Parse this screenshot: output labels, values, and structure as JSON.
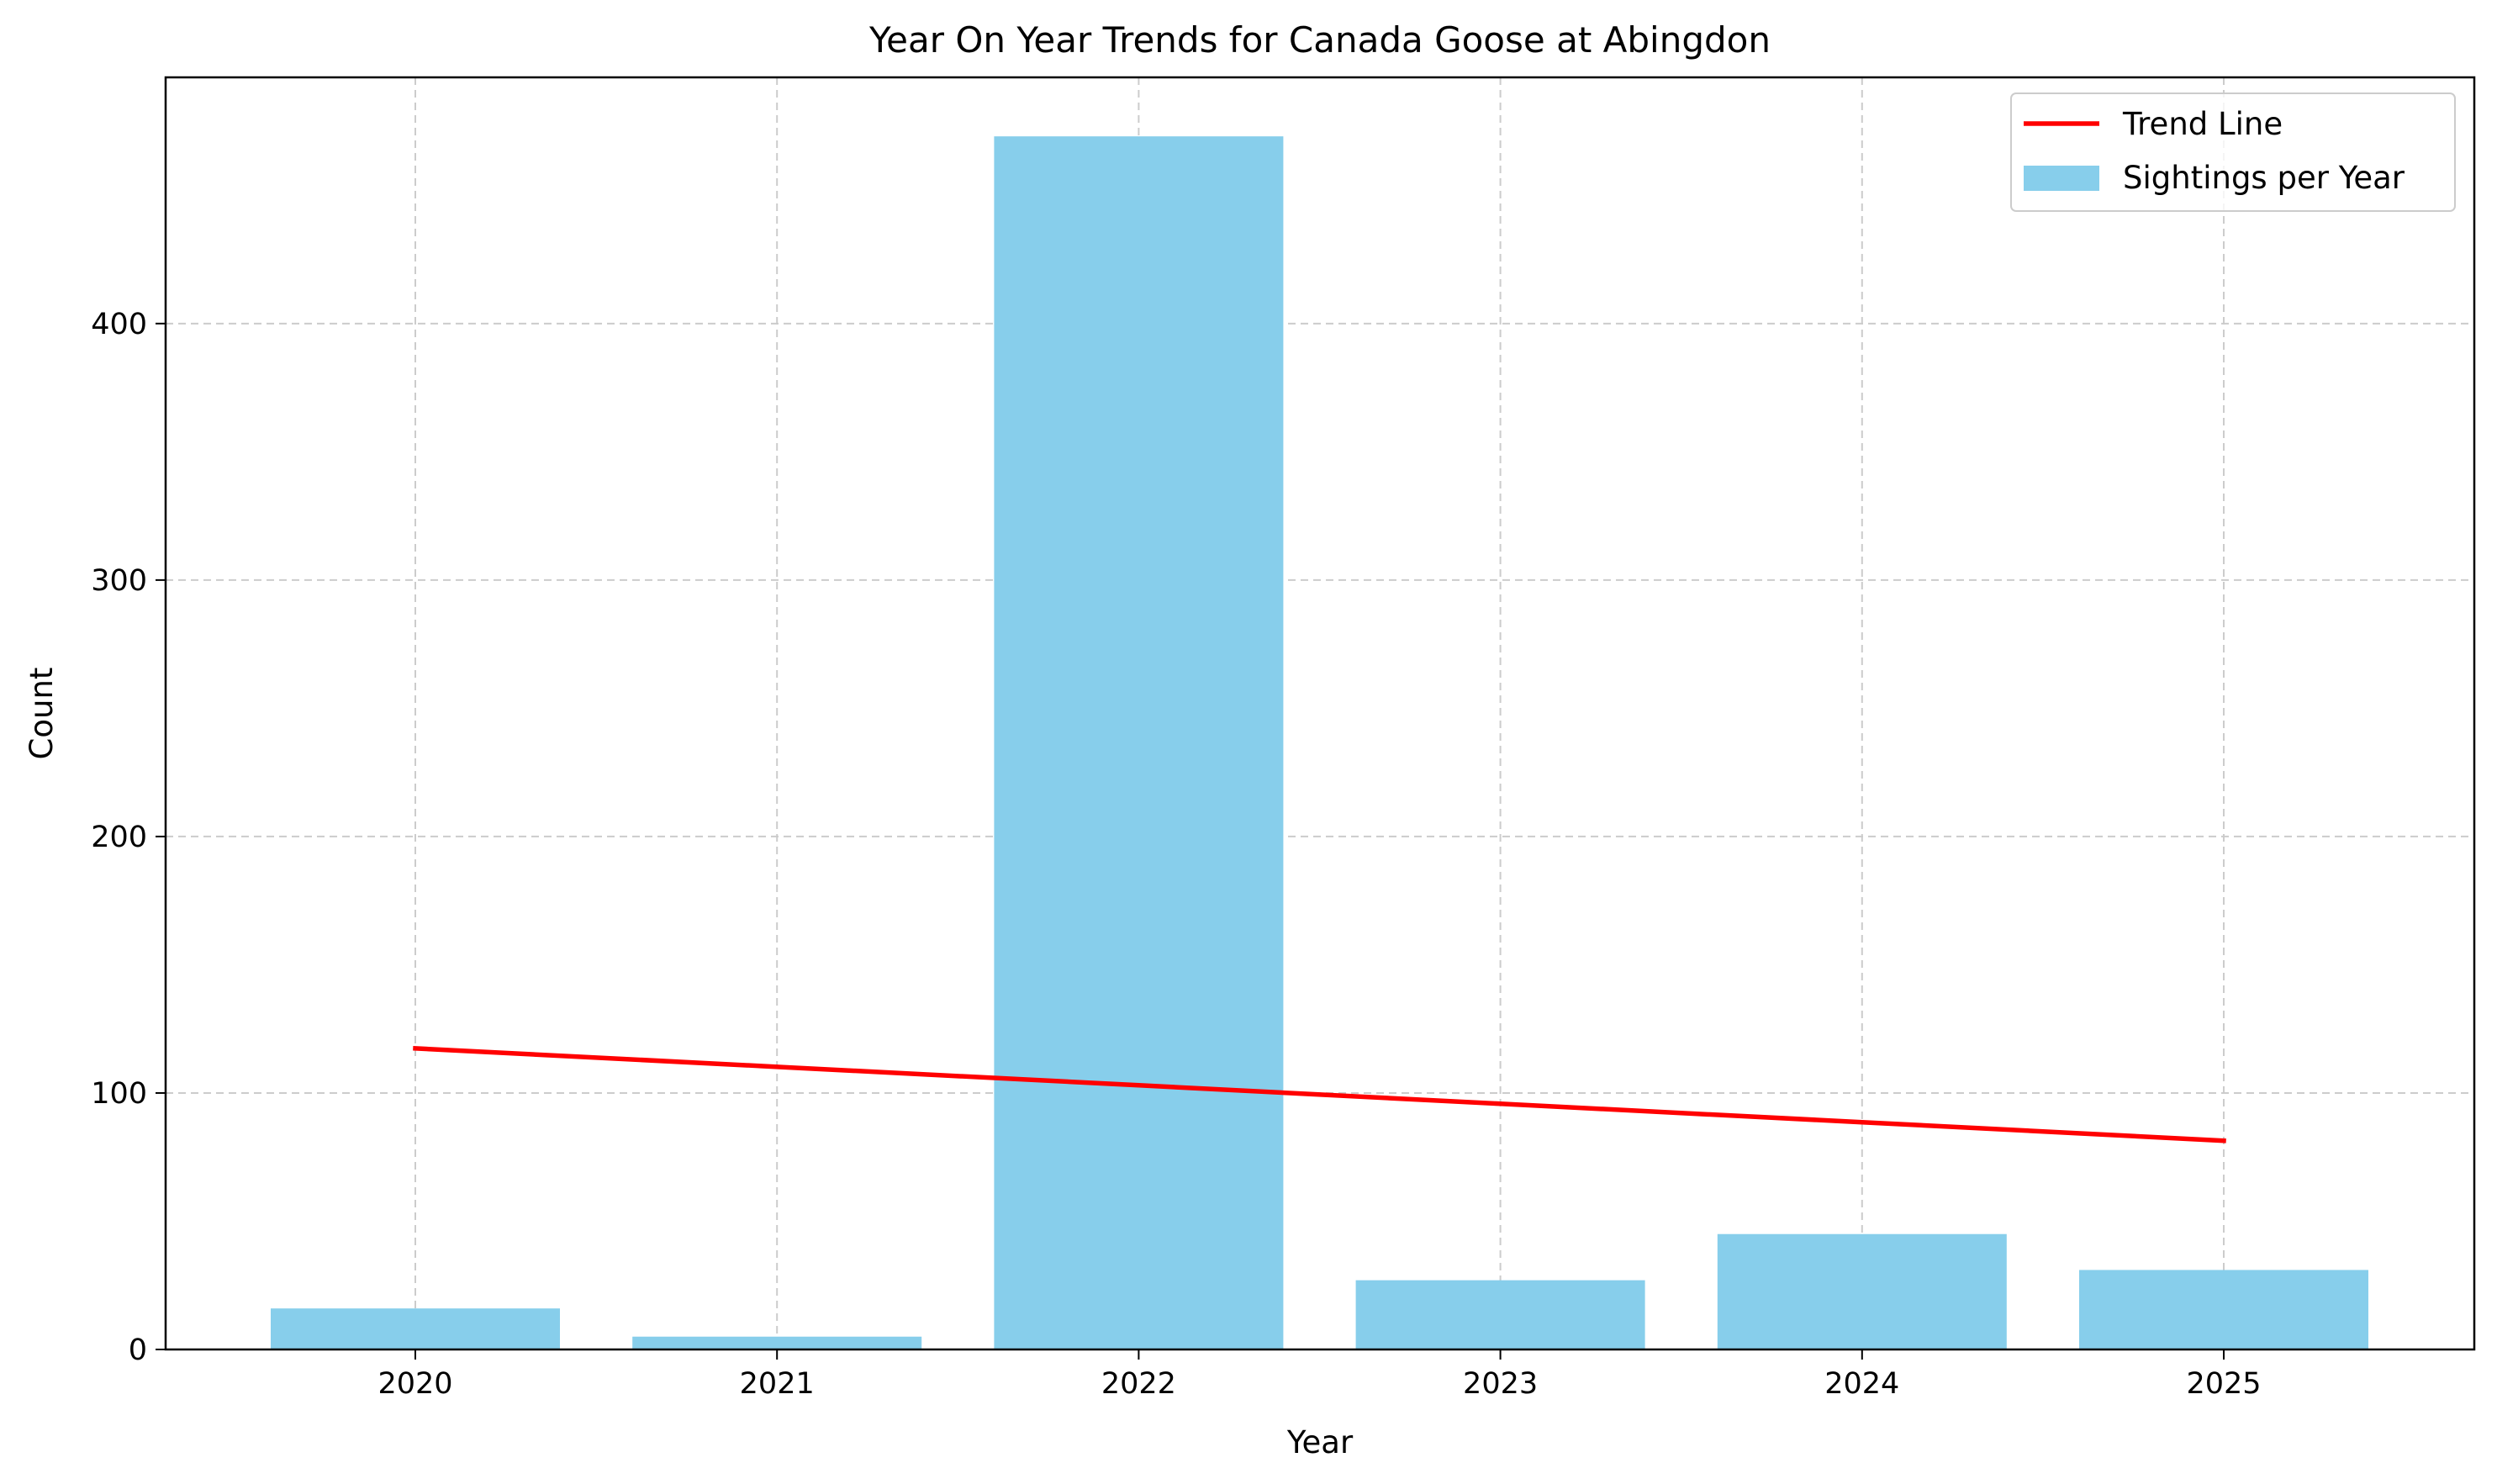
{
  "chart_data": {
    "type": "bar",
    "title": "Year On Year Trends for Canada Goose at Abingdon",
    "xlabel": "Year",
    "ylabel": "Count",
    "categories": [
      "2020",
      "2021",
      "2022",
      "2023",
      "2024",
      "2025"
    ],
    "series": [
      {
        "name": "Sightings per Year",
        "kind": "bar",
        "color": "#87CEEB",
        "values": [
          16,
          5,
          473,
          27,
          45,
          31
        ]
      },
      {
        "name": "Trend Line",
        "kind": "line",
        "color": "#FF0000",
        "values": [
          117.4,
          110.2,
          103.0,
          95.8,
          88.6,
          81.4
        ]
      }
    ],
    "ylim": [
      0,
      496
    ],
    "yticks": [
      0,
      100,
      200,
      300,
      400
    ],
    "grid": true,
    "legend_position": "top-right"
  }
}
